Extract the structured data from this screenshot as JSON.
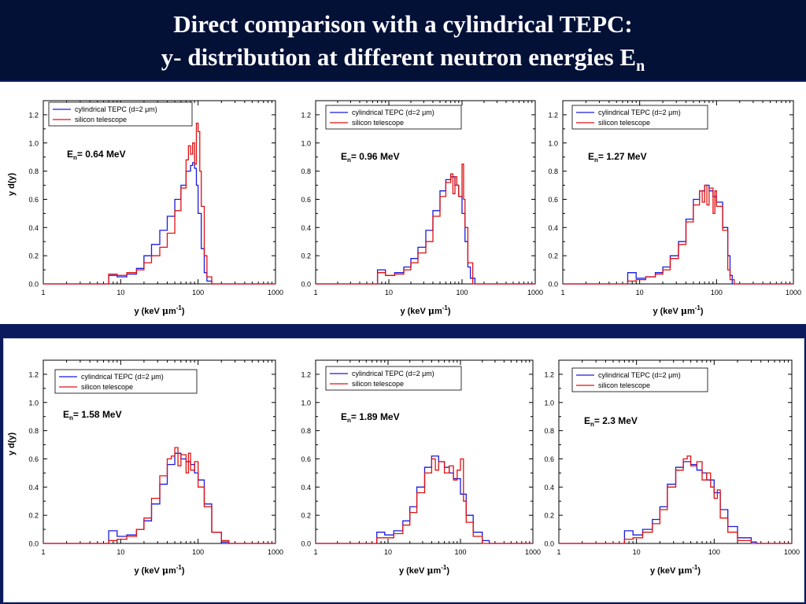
{
  "slide": {
    "title_line1": "Direct comparison with a cylindrical TEPC:",
    "title_line2_main": "y- distribution at different neutron energies E",
    "title_line2_sub": "n"
  },
  "colors": {
    "background": "#0a1a5c",
    "header": "#041137",
    "tepc": "#1a1adf",
    "silicon": "#e01010"
  },
  "axis_common": {
    "xlabel_prefix": "y (keV ",
    "xlabel_mu": "μ",
    "xlabel_unit": "m",
    "xlabel_exp": "-1",
    "xlabel_suffix": ")",
    "ylabel": "y d(y)",
    "x_ticks": [
      "1",
      "10",
      "100",
      "1000"
    ],
    "y_ticks": [
      "0.0",
      "0.2",
      "0.4",
      "0.6",
      "0.8",
      "1.0",
      "1.2"
    ]
  },
  "legend_common": {
    "tepc_label": "cylindrical TEPC (d=2 μm)",
    "silicon_label": "silicon telescope"
  },
  "chart_data": [
    {
      "type": "line",
      "energy_prefix": "E",
      "energy_sub": "n",
      "energy_value": "= 0.64 MeV",
      "xscale": "log",
      "xlim": [
        1,
        1000
      ],
      "ylim": [
        0,
        1.3
      ],
      "grid": false,
      "legend": "top-left",
      "series": [
        {
          "name": "cylindrical TEPC (d=2 μm)",
          "color": "#1a1adf",
          "x": [
            6.5,
            7,
            9,
            12,
            16,
            20,
            25,
            32,
            40,
            50,
            60,
            70,
            80,
            85,
            90,
            95,
            100,
            110,
            120,
            130,
            150,
            200,
            1000
          ],
          "y": [
            0,
            0.06,
            0.05,
            0.07,
            0.11,
            0.2,
            0.28,
            0.38,
            0.48,
            0.6,
            0.7,
            0.8,
            0.84,
            0.86,
            0.82,
            0.7,
            0.5,
            0.25,
            0.08,
            0.02,
            0,
            0,
            0
          ]
        },
        {
          "name": "silicon telescope",
          "color": "#e01010",
          "x": [
            6.5,
            7,
            9,
            12,
            16,
            20,
            25,
            32,
            40,
            50,
            60,
            70,
            75,
            80,
            85,
            90,
            95,
            100,
            105,
            110,
            120,
            130,
            150,
            1000
          ],
          "y": [
            0,
            0.07,
            0.06,
            0.08,
            0.1,
            0.15,
            0.2,
            0.26,
            0.36,
            0.52,
            0.68,
            0.88,
            0.98,
            0.92,
            1.0,
            0.85,
            1.14,
            1.08,
            0.8,
            0.55,
            0.2,
            0.05,
            0,
            0
          ]
        }
      ]
    },
    {
      "type": "line",
      "energy_prefix": "E",
      "energy_sub": "n",
      "energy_value": "= 0.96 MeV",
      "xscale": "log",
      "xlim": [
        1,
        1000
      ],
      "ylim": [
        0,
        1.3
      ],
      "grid": false,
      "legend": "top-left",
      "series": [
        {
          "name": "cylindrical TEPC (d=2 μm)",
          "color": "#1a1adf",
          "x": [
            6.5,
            7,
            9,
            12,
            16,
            20,
            25,
            32,
            40,
            50,
            60,
            70,
            80,
            90,
            100,
            110,
            120,
            130,
            150,
            200,
            1000
          ],
          "y": [
            0,
            0.1,
            0.06,
            0.08,
            0.12,
            0.18,
            0.26,
            0.38,
            0.52,
            0.66,
            0.74,
            0.76,
            0.7,
            0.62,
            0.5,
            0.3,
            0.12,
            0.04,
            0,
            0,
            0
          ]
        },
        {
          "name": "silicon telescope",
          "color": "#e01010",
          "x": [
            6.5,
            7,
            9,
            12,
            16,
            20,
            25,
            32,
            40,
            50,
            60,
            70,
            75,
            80,
            85,
            90,
            100,
            105,
            110,
            120,
            140,
            1000
          ],
          "y": [
            0,
            0.08,
            0.06,
            0.07,
            0.1,
            0.15,
            0.22,
            0.3,
            0.48,
            0.62,
            0.72,
            0.78,
            0.64,
            0.76,
            0.7,
            0.62,
            0.85,
            0.6,
            0.4,
            0.15,
            0,
            0
          ]
        }
      ]
    },
    {
      "type": "line",
      "energy_prefix": "E",
      "energy_sub": "n",
      "energy_value": "= 1.27 MeV",
      "xscale": "log",
      "xlim": [
        1,
        1000
      ],
      "ylim": [
        0,
        1.3
      ],
      "grid": false,
      "legend": "top-left",
      "series": [
        {
          "name": "cylindrical TEPC (d=2 μm)",
          "color": "#1a1adf",
          "x": [
            6.5,
            7,
            9,
            12,
            16,
            20,
            25,
            32,
            40,
            50,
            60,
            70,
            80,
            90,
            100,
            120,
            140,
            150,
            160,
            200,
            1000
          ],
          "y": [
            0,
            0.08,
            0.04,
            0.05,
            0.08,
            0.12,
            0.2,
            0.3,
            0.46,
            0.6,
            0.66,
            0.7,
            0.66,
            0.62,
            0.58,
            0.4,
            0.2,
            0.06,
            0,
            0,
            0
          ]
        },
        {
          "name": "silicon telescope",
          "color": "#e01010",
          "x": [
            6.5,
            7,
            9,
            12,
            16,
            20,
            25,
            32,
            40,
            50,
            60,
            65,
            70,
            75,
            80,
            90,
            95,
            100,
            120,
            140,
            150,
            170,
            1000
          ],
          "y": [
            0,
            0.02,
            0.03,
            0.05,
            0.07,
            0.1,
            0.18,
            0.28,
            0.44,
            0.56,
            0.66,
            0.58,
            0.7,
            0.56,
            0.68,
            0.5,
            0.66,
            0.55,
            0.38,
            0.1,
            0.03,
            0,
            0
          ]
        }
      ]
    },
    {
      "type": "line",
      "energy_prefix": "E",
      "energy_sub": "n",
      "energy_value": "= 1.58 MeV",
      "xscale": "log",
      "xlim": [
        1,
        1000
      ],
      "ylim": [
        0,
        1.3
      ],
      "grid": false,
      "legend": "top-left",
      "series": [
        {
          "name": "cylindrical TEPC (d=2 μm)",
          "color": "#1a1adf",
          "x": [
            6.5,
            7,
            9,
            12,
            16,
            20,
            25,
            32,
            40,
            50,
            60,
            70,
            80,
            90,
            100,
            120,
            150,
            200,
            250,
            1000
          ],
          "y": [
            0,
            0.09,
            0.05,
            0.06,
            0.1,
            0.16,
            0.28,
            0.42,
            0.56,
            0.64,
            0.6,
            0.58,
            0.56,
            0.5,
            0.45,
            0.28,
            0.08,
            0.01,
            0,
            0
          ]
        },
        {
          "name": "silicon telescope",
          "color": "#e01010",
          "x": [
            6.5,
            7,
            9,
            12,
            16,
            20,
            25,
            32,
            40,
            45,
            50,
            55,
            60,
            70,
            75,
            80,
            90,
            100,
            120,
            150,
            200,
            250,
            1000
          ],
          "y": [
            0,
            0.02,
            0.03,
            0.05,
            0.1,
            0.18,
            0.32,
            0.48,
            0.6,
            0.62,
            0.68,
            0.55,
            0.63,
            0.5,
            0.64,
            0.52,
            0.58,
            0.4,
            0.26,
            0.08,
            0.02,
            0,
            0
          ]
        }
      ]
    },
    {
      "type": "line",
      "energy_prefix": "E",
      "energy_sub": "n",
      "energy_value": "= 1.89 MeV",
      "xscale": "log",
      "xlim": [
        1,
        1000
      ],
      "ylim": [
        0,
        1.3
      ],
      "grid": false,
      "legend": "top-left",
      "series": [
        {
          "name": "cylindrical TEPC (d=2 μm)",
          "color": "#1a1adf",
          "x": [
            6.5,
            7,
            9,
            12,
            16,
            20,
            25,
            32,
            40,
            50,
            60,
            70,
            80,
            100,
            120,
            150,
            200,
            250,
            1000
          ],
          "y": [
            0,
            0.08,
            0.06,
            0.09,
            0.16,
            0.26,
            0.4,
            0.54,
            0.62,
            0.58,
            0.54,
            0.5,
            0.46,
            0.35,
            0.2,
            0.08,
            0.02,
            0,
            0
          ]
        },
        {
          "name": "silicon telescope",
          "color": "#e01010",
          "x": [
            6.5,
            7,
            9,
            12,
            16,
            20,
            25,
            32,
            40,
            45,
            50,
            60,
            70,
            80,
            90,
            100,
            110,
            120,
            150,
            200,
            1000
          ],
          "y": [
            0,
            0.04,
            0.04,
            0.07,
            0.13,
            0.22,
            0.36,
            0.5,
            0.6,
            0.52,
            0.58,
            0.5,
            0.55,
            0.45,
            0.52,
            0.6,
            0.3,
            0.15,
            0.05,
            0,
            0
          ]
        }
      ]
    },
    {
      "type": "line",
      "energy_prefix": "E",
      "energy_sub": "n",
      "energy_value": "= 2.3 MeV",
      "xscale": "log",
      "xlim": [
        1,
        1000
      ],
      "ylim": [
        0,
        1.3
      ],
      "grid": false,
      "legend": "top-left",
      "series": [
        {
          "name": "cylindrical TEPC (d=2 μm)",
          "color": "#1a1adf",
          "x": [
            6.5,
            7,
            9,
            12,
            16,
            20,
            25,
            32,
            40,
            50,
            60,
            70,
            80,
            100,
            120,
            150,
            200,
            300,
            350,
            1000
          ],
          "y": [
            0,
            0.09,
            0.06,
            0.1,
            0.17,
            0.26,
            0.42,
            0.54,
            0.58,
            0.56,
            0.52,
            0.5,
            0.45,
            0.36,
            0.24,
            0.12,
            0.04,
            0.01,
            0,
            0
          ]
        },
        {
          "name": "silicon telescope",
          "color": "#e01010",
          "x": [
            6.5,
            7,
            9,
            12,
            16,
            20,
            25,
            32,
            40,
            45,
            50,
            60,
            70,
            80,
            90,
            100,
            110,
            120,
            150,
            200,
            300,
            1000
          ],
          "y": [
            0,
            0.03,
            0.04,
            0.08,
            0.14,
            0.24,
            0.4,
            0.52,
            0.6,
            0.62,
            0.55,
            0.58,
            0.45,
            0.5,
            0.4,
            0.32,
            0.38,
            0.18,
            0.08,
            0.02,
            0,
            0
          ]
        }
      ]
    }
  ]
}
